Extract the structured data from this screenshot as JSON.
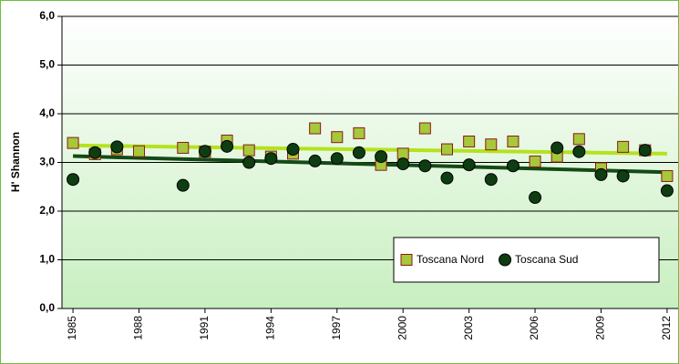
{
  "chart_data": {
    "type": "scatter",
    "ylabel": "H' Shannon",
    "x": [
      1985,
      1986,
      1987,
      1988,
      1989,
      1990,
      1991,
      1992,
      1993,
      1994,
      1995,
      1996,
      1997,
      1998,
      1999,
      2000,
      2001,
      2002,
      2003,
      2004,
      2005,
      2006,
      2007,
      2008,
      2009,
      2010,
      2011,
      2012
    ],
    "series": [
      {
        "name": "Toscana Nord",
        "color": "#a6c83a",
        "marker": "square",
        "values": [
          3.4,
          3.17,
          3.27,
          3.23,
          null,
          3.3,
          3.22,
          3.45,
          3.25,
          3.12,
          3.18,
          3.7,
          3.52,
          3.6,
          2.95,
          3.18,
          3.7,
          3.27,
          3.43,
          3.37,
          3.43,
          3.02,
          3.12,
          3.48,
          2.88,
          3.32,
          3.25,
          2.72
        ],
        "trend": [
          3.35,
          3.18
        ],
        "trend_color": "#b4e21e"
      },
      {
        "name": "Toscana Sud",
        "color": "#0e3d12",
        "marker": "circle",
        "values": [
          2.65,
          3.2,
          3.32,
          null,
          null,
          2.53,
          3.23,
          3.33,
          3.0,
          3.08,
          3.27,
          3.03,
          3.08,
          3.2,
          3.12,
          2.97,
          2.93,
          2.68,
          2.95,
          2.65,
          2.93,
          2.28,
          3.3,
          3.22,
          2.75,
          2.72,
          3.25,
          2.42
        ],
        "trend": [
          3.13,
          2.8
        ],
        "trend_color": "#144a16"
      }
    ],
    "xlim": [
      1984.5,
      2012.5
    ],
    "xticks": [
      1985,
      1988,
      1991,
      1994,
      1997,
      2000,
      2003,
      2006,
      2009,
      2012
    ],
    "ylim": [
      0,
      6
    ],
    "yticks": [
      {
        "value": 0,
        "label": "0,0"
      },
      {
        "value": 1,
        "label": "1,0"
      },
      {
        "value": 2,
        "label": "2,0"
      },
      {
        "value": 3,
        "label": "3,0"
      },
      {
        "value": 4,
        "label": "4,0"
      },
      {
        "value": 5,
        "label": "5,0"
      },
      {
        "value": 6,
        "label": "6,0"
      }
    ],
    "grid": true,
    "legend": "lower right"
  }
}
